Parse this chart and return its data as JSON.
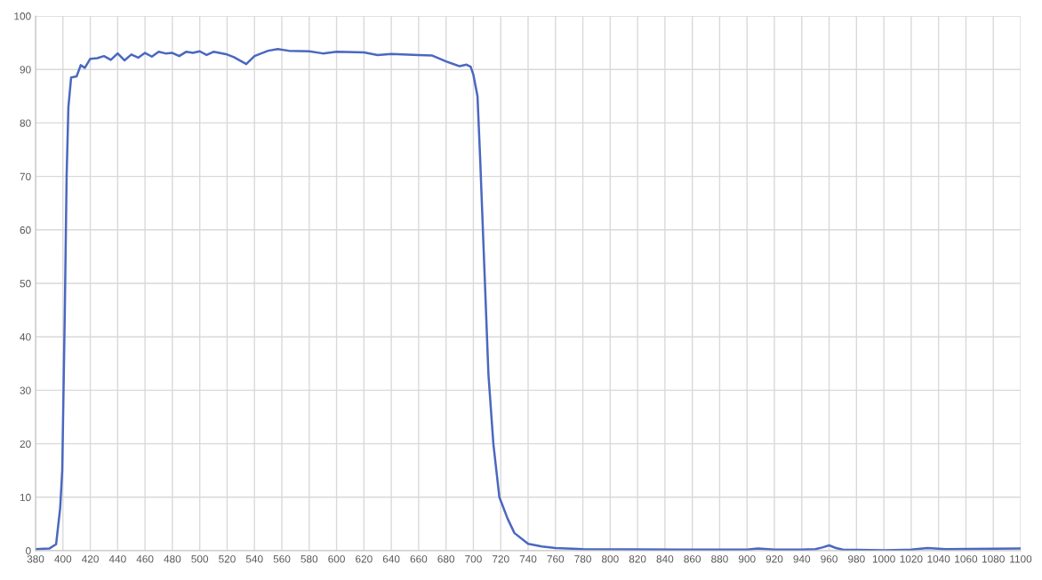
{
  "chart_data": {
    "type": "line",
    "x": [
      380,
      390,
      395,
      398,
      399.5,
      401.4,
      402.7,
      404,
      406,
      410,
      413,
      416,
      420,
      425,
      430,
      435,
      440,
      445,
      450,
      455,
      460,
      465,
      470,
      475,
      480,
      485,
      490,
      495,
      500,
      505,
      510,
      520,
      525,
      534,
      540,
      545,
      550,
      557,
      565,
      580,
      590,
      600,
      620,
      630,
      640,
      660,
      670,
      680,
      690,
      695,
      698,
      700,
      703,
      705,
      708,
      711,
      714.6,
      719,
      725,
      730,
      740,
      750,
      760,
      780,
      850,
      900,
      908,
      920,
      940,
      950,
      955,
      960,
      965,
      970,
      1000,
      1020,
      1032,
      1045,
      1100
    ],
    "series": [
      {
        "color": "#4a68c0",
        "values": [
          0.3,
          0.4,
          1.2,
          8,
          15,
          45,
          70,
          83,
          88.5,
          88.7,
          90.8,
          90.3,
          92,
          92.1,
          92.5,
          91.8,
          93,
          91.7,
          92.8,
          92.2,
          93.1,
          92.4,
          93.3,
          93,
          93.1,
          92.5,
          93.3,
          93.1,
          93.4,
          92.7,
          93.3,
          92.8,
          92.3,
          91,
          92.5,
          93,
          93.5,
          93.8,
          93.5,
          93.4,
          93,
          93.3,
          93.2,
          92.7,
          92.9,
          92.7,
          92.6,
          91.5,
          90.6,
          90.9,
          90.5,
          89,
          85,
          73,
          53,
          33,
          20,
          10,
          6,
          3.3,
          1.3,
          0.8,
          0.5,
          0.3,
          0.2,
          0.2,
          0.4,
          0.2,
          0.2,
          0.3,
          0.6,
          1,
          0.5,
          0.2,
          0.1,
          0.2,
          0.5,
          0.3,
          0.4
        ]
      }
    ],
    "xlim": [
      380,
      1100
    ],
    "xticks": [
      380,
      400,
      420,
      440,
      460,
      480,
      500,
      520,
      540,
      560,
      580,
      600,
      620,
      640,
      660,
      680,
      700,
      720,
      740,
      760,
      780,
      800,
      820,
      840,
      860,
      880,
      900,
      920,
      940,
      960,
      980,
      1000,
      1020,
      1040,
      1060,
      1080,
      1100
    ],
    "ylim": [
      0,
      100
    ],
    "yticks": [
      0,
      10,
      20,
      30,
      40,
      50,
      60,
      70,
      80,
      90,
      100
    ],
    "grid": true,
    "marker": "none",
    "line_style": "solid"
  }
}
